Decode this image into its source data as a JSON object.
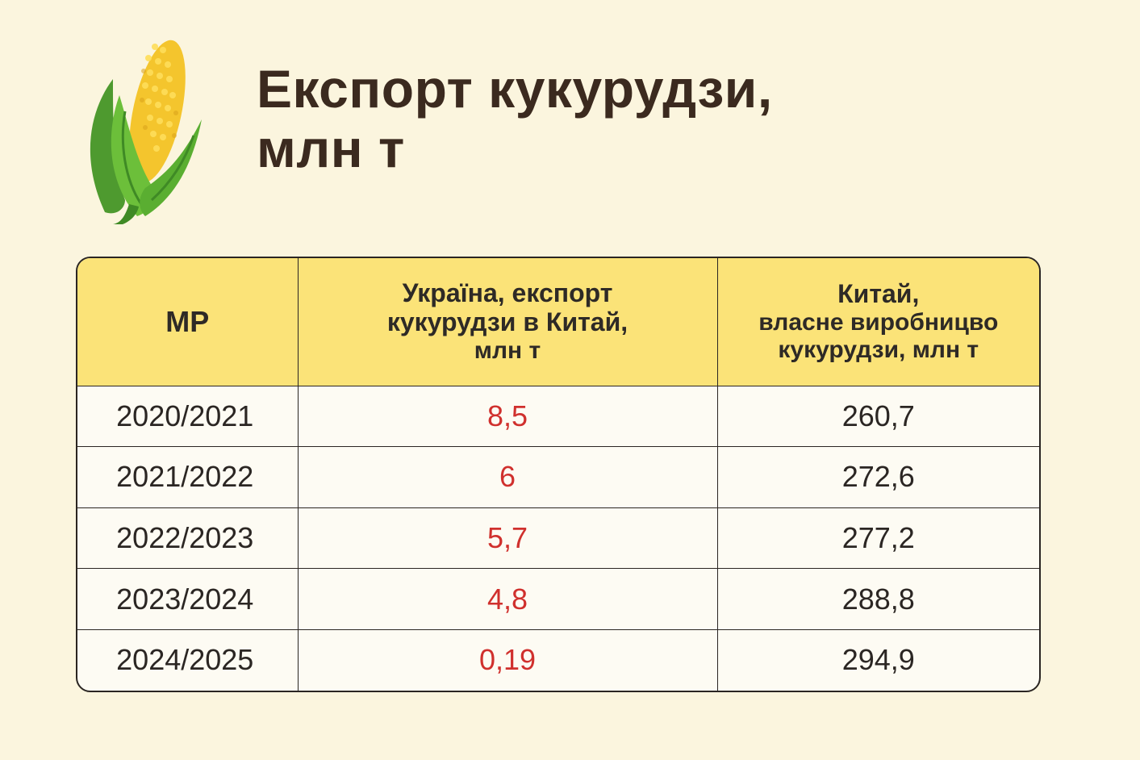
{
  "title": {
    "line1": "Експорт кукурудзи,",
    "line2": "млн т"
  },
  "icon": "corn-icon",
  "colors": {
    "background": "#fbf5de",
    "header": "#fbe378",
    "accent_red": "#d0302d",
    "text": "#3b2a1f"
  },
  "table": {
    "headers": {
      "col1": "МР",
      "col2": [
        "Україна, експорт",
        "кукурудзи в Китай,",
        "млн т"
      ],
      "col3": [
        "Китай,",
        "власне виробницво",
        "кукурудзи, млн т"
      ]
    },
    "rows": [
      {
        "year": "2020/2021",
        "ukraine": "8,5",
        "china": "260,7"
      },
      {
        "year": "2021/2022",
        "ukraine": "6",
        "china": "272,6"
      },
      {
        "year": "2022/2023",
        "ukraine": "5,7",
        "china": "277,2"
      },
      {
        "year": "2023/2024",
        "ukraine": "4,8",
        "china": "288,8"
      },
      {
        "year": "2024/2025",
        "ukraine": "0,19",
        "china": "294,9"
      }
    ]
  }
}
